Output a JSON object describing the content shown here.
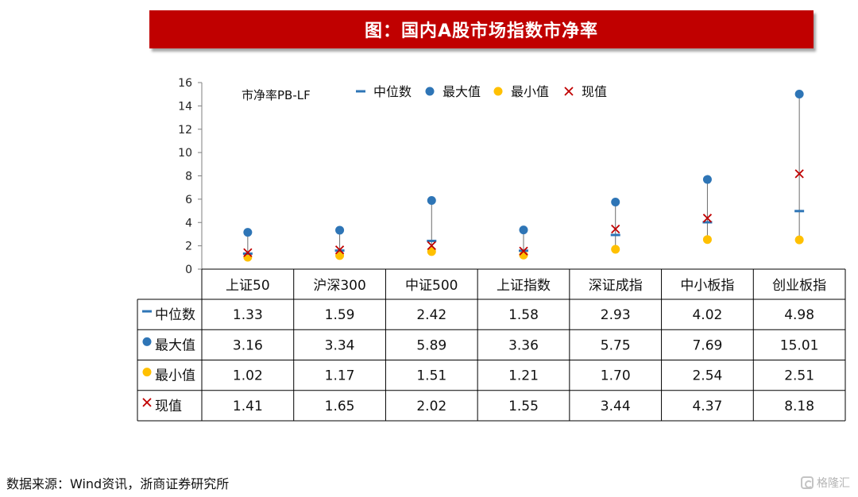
{
  "header": {
    "title": "图：国内A股市场指数市净率"
  },
  "chart_data": {
    "type": "scatter",
    "annotation": "市净率PB-LF",
    "ylim": [
      0,
      16
    ],
    "yticks": [
      0,
      2,
      4,
      6,
      8,
      10,
      12,
      14,
      16
    ],
    "categories": [
      "上证50",
      "沪深300",
      "中证500",
      "上证指数",
      "深证成指",
      "中小板指",
      "创业板指"
    ],
    "series": [
      {
        "name": "中位数",
        "marker": "dash",
        "color": "#2e75b6",
        "values": [
          1.33,
          1.59,
          2.42,
          1.58,
          2.93,
          4.02,
          4.98
        ]
      },
      {
        "name": "最大值",
        "marker": "circle",
        "color": "#2e75b6",
        "values": [
          3.16,
          3.34,
          5.89,
          3.36,
          5.75,
          7.69,
          15.01
        ]
      },
      {
        "name": "最小值",
        "marker": "circle",
        "color": "#ffc000",
        "values": [
          1.02,
          1.17,
          1.51,
          1.21,
          1.7,
          2.54,
          2.51
        ]
      },
      {
        "name": "现值",
        "marker": "cross",
        "color": "#c00000",
        "values": [
          1.41,
          1.65,
          2.02,
          1.55,
          3.44,
          4.37,
          8.18
        ]
      }
    ],
    "table": {
      "rows": [
        {
          "label": "中位数",
          "cells": [
            "1.33",
            "1.59",
            "2.42",
            "1.58",
            "2.93",
            "4.02",
            "4.98"
          ]
        },
        {
          "label": "最大值",
          "cells": [
            "3.16",
            "3.34",
            "5.89",
            "3.36",
            "5.75",
            "7.69",
            "15.01"
          ]
        },
        {
          "label": "最小值",
          "cells": [
            "1.02",
            "1.17",
            "1.51",
            "1.21",
            "1.70",
            "2.54",
            "2.51"
          ]
        },
        {
          "label": "现值",
          "cells": [
            "1.41",
            "1.65",
            "2.02",
            "1.55",
            "3.44",
            "4.37",
            "8.18"
          ]
        }
      ]
    }
  },
  "footer": {
    "source": "数据来源：Wind资讯，浙商证券研究所",
    "watermark": "格隆汇"
  }
}
